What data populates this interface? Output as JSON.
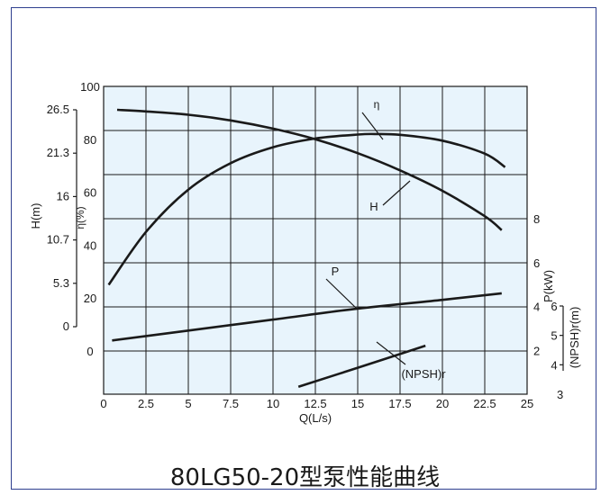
{
  "caption": "80LG50-20型泵性能曲线",
  "colors": {
    "grid_fill": "#e8f4fc",
    "line": "#1a1a1a",
    "frame": "#2e3f8f"
  },
  "chart_data": {
    "type": "line",
    "title": "80LG50-20型泵性能曲线",
    "grid": true,
    "xlabel": "Q(L/s)",
    "xlim": [
      0,
      25
    ],
    "x_ticks": [
      "0",
      "2.5",
      "5",
      "7.5",
      "10",
      "12.5",
      "15",
      "17.5",
      "20",
      "22.5",
      "25"
    ],
    "axes": {
      "H": {
        "label": "H(m)",
        "ticks": [
          "0",
          "5.3",
          "10.7",
          "16",
          "21.3",
          "26.5"
        ],
        "range": [
          0,
          26.5
        ]
      },
      "eta": {
        "label": "η(%)",
        "ticks": [
          "0",
          "20",
          "40",
          "60",
          "80",
          "100"
        ],
        "range": [
          0,
          100
        ]
      },
      "P": {
        "label": "P(kW)",
        "ticks": [
          "2",
          "4",
          "6",
          "8"
        ],
        "range": [
          0,
          8
        ]
      },
      "NPSH": {
        "label": "(NPSH)r(m)",
        "ticks": [
          "3",
          "4",
          "5",
          "6"
        ],
        "range": [
          3,
          6
        ]
      }
    },
    "series": [
      {
        "name": "H",
        "axis": "H",
        "x": [
          0.8,
          2.5,
          5,
          7.5,
          10,
          12.5,
          15,
          17.5,
          20,
          22.5,
          23.5
        ],
        "values": [
          26.5,
          26.3,
          25.9,
          25.2,
          24.2,
          22.9,
          21.2,
          19.1,
          16.6,
          13.5,
          11.8
        ]
      },
      {
        "name": "η",
        "axis": "eta",
        "x": [
          0.3,
          2.5,
          5,
          7.5,
          10,
          12.5,
          15,
          16,
          17.5,
          20,
          22.5,
          23.7
        ],
        "values": [
          25,
          45,
          61,
          71,
          77,
          80.3,
          81.8,
          82,
          81.7,
          79.5,
          74.6,
          69.5
        ]
      },
      {
        "name": "P",
        "axis": "P",
        "x": [
          0.5,
          5,
          10,
          15,
          20,
          23.5
        ],
        "values": [
          2.45,
          2.9,
          3.4,
          3.9,
          4.3,
          4.6
        ]
      },
      {
        "name": "(NPSH)r",
        "axis": "NPSH",
        "x": [
          11.5,
          15,
          19
        ],
        "values": [
          3.25,
          3.9,
          4.65
        ]
      }
    ]
  }
}
